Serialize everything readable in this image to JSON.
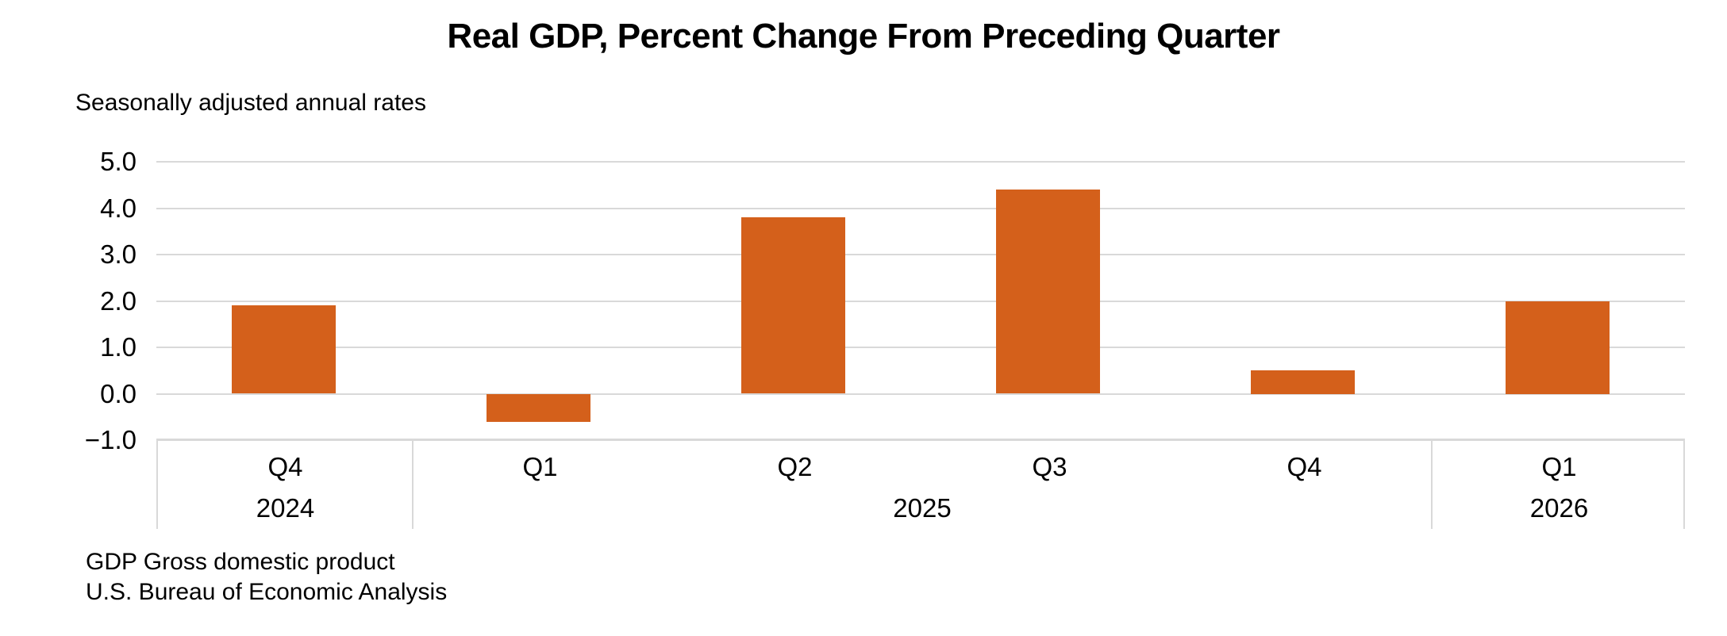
{
  "chart_data": {
    "type": "bar",
    "title": "Real GDP, Percent Change From Preceding Quarter",
    "subtitle": "Seasonally adjusted annual rates",
    "categories": [
      "Q4",
      "Q1",
      "Q2",
      "Q3",
      "Q4",
      "Q1"
    ],
    "year_groups": [
      {
        "label": "2024",
        "span": 1
      },
      {
        "label": "2025",
        "span": 4
      },
      {
        "label": "2026",
        "span": 1
      }
    ],
    "values": [
      1.9,
      -0.6,
      3.8,
      4.4,
      0.5,
      2.0
    ],
    "ylim": [
      -1.0,
      5.0
    ],
    "yticks": [
      5.0,
      4.0,
      3.0,
      2.0,
      1.0,
      0.0,
      -1.0
    ],
    "ytick_labels": [
      "5.0",
      "4.0",
      "3.0",
      "2.0",
      "1.0",
      "0.0",
      "−1.0"
    ],
    "grid": true,
    "legend_position": "none",
    "bar_color": "#D4601B",
    "gridline_color": "#D9D9D9",
    "axis_border_color": "#D9D9D9",
    "footnotes": [
      "GDP Gross domestic product",
      "U.S. Bureau of Economic Analysis"
    ]
  }
}
